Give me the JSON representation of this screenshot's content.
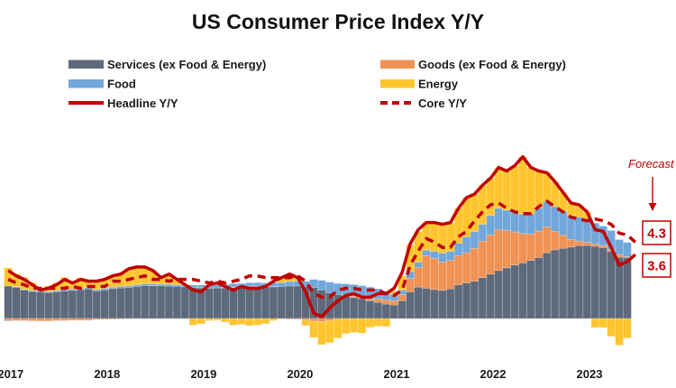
{
  "title": "US Consumer Price Index Y/Y",
  "legend": {
    "items": [
      {
        "key": "services",
        "label": "Services (ex Food & Energy)",
        "type": "bar",
        "color": "#5E6A7B"
      },
      {
        "key": "goods",
        "label": "Goods (ex Food & Energy)",
        "type": "bar",
        "color": "#EF9255"
      },
      {
        "key": "food",
        "label": "Food",
        "type": "bar",
        "color": "#72A7DA"
      },
      {
        "key": "energy",
        "label": "Energy",
        "type": "bar",
        "color": "#FFC52F"
      },
      {
        "key": "headline",
        "label": "Headline Y/Y",
        "type": "line-solid",
        "color": "#C00000"
      },
      {
        "key": "core",
        "label": "Core Y/Y",
        "type": "line-dashed",
        "color": "#C00000"
      }
    ]
  },
  "annotation": {
    "forecast_label": "Forecast",
    "forecast_core_value": "4.3",
    "forecast_headline_value": "3.6",
    "color": "#C00000"
  },
  "chart_data": {
    "type": "bar",
    "stacked": true,
    "overlay_type": "line",
    "title": "US Consumer Price Index Y/Y",
    "xlabel": "",
    "ylabel": "",
    "ylim": [
      -2,
      10
    ],
    "grid": false,
    "legend_position": "top",
    "x_tick_labels": [
      "2017",
      "2018",
      "2019",
      "2020",
      "2021",
      "2022",
      "2023"
    ],
    "bar_months": [
      "2017-02",
      "2017-03",
      "2017-04",
      "2017-05",
      "2017-06",
      "2017-07",
      "2017-08",
      "2017-09",
      "2017-10",
      "2017-11",
      "2017-12",
      "2018-01",
      "2018-02",
      "2018-03",
      "2018-04",
      "2018-05",
      "2018-06",
      "2018-07",
      "2018-08",
      "2018-09",
      "2018-10",
      "2018-11",
      "2018-12",
      "2019-01",
      "2019-02",
      "2019-03",
      "2019-04",
      "2019-05",
      "2019-06",
      "2019-07",
      "2019-08",
      "2019-09",
      "2019-10",
      "2019-11",
      "2019-12",
      "2020-01",
      "2020-02",
      "2020-03",
      "2020-04",
      "2020-05",
      "2020-06",
      "2020-07",
      "2020-08",
      "2020-09",
      "2020-10",
      "2020-11",
      "2020-12",
      "2021-01",
      "2021-02",
      "2021-03",
      "2021-04",
      "2021-05",
      "2021-06",
      "2021-07",
      "2021-08",
      "2021-09",
      "2021-10",
      "2021-11",
      "2021-12",
      "2022-01",
      "2022-02",
      "2022-03",
      "2022-04",
      "2022-05",
      "2022-06",
      "2022-07",
      "2022-08",
      "2022-09",
      "2022-10",
      "2022-11",
      "2022-12",
      "2023-01",
      "2023-02",
      "2023-03",
      "2023-04",
      "2023-05",
      "2023-06",
      "2023-07"
    ],
    "line_months": [
      "2017-02",
      "2017-03",
      "2017-04",
      "2017-05",
      "2017-06",
      "2017-07",
      "2017-08",
      "2017-09",
      "2017-10",
      "2017-11",
      "2017-12",
      "2018-01",
      "2018-02",
      "2018-03",
      "2018-04",
      "2018-05",
      "2018-06",
      "2018-07",
      "2018-08",
      "2018-09",
      "2018-10",
      "2018-11",
      "2018-12",
      "2019-01",
      "2019-02",
      "2019-03",
      "2019-04",
      "2019-05",
      "2019-06",
      "2019-07",
      "2019-08",
      "2019-09",
      "2019-10",
      "2019-11",
      "2019-12",
      "2020-01",
      "2020-02",
      "2020-03",
      "2020-04",
      "2020-05",
      "2020-06",
      "2020-07",
      "2020-08",
      "2020-09",
      "2020-10",
      "2020-11",
      "2020-12",
      "2021-01",
      "2021-02",
      "2021-03",
      "2021-04",
      "2021-05",
      "2021-06",
      "2021-07",
      "2021-08",
      "2021-09",
      "2021-10",
      "2021-11",
      "2021-12",
      "2022-01",
      "2022-02",
      "2022-03",
      "2022-04",
      "2022-05",
      "2022-06",
      "2022-07",
      "2022-08",
      "2022-09",
      "2022-10",
      "2022-11",
      "2022-12",
      "2023-01",
      "2023-02",
      "2023-03",
      "2023-04",
      "2023-05",
      "2023-06",
      "2023-07",
      "2023-08"
    ],
    "series": [
      {
        "key": "services",
        "name": "Services (ex Food & Energy)",
        "kind": "bar",
        "values": [
          1.83,
          1.75,
          1.6,
          1.52,
          1.5,
          1.46,
          1.5,
          1.55,
          1.58,
          1.62,
          1.66,
          1.55,
          1.6,
          1.68,
          1.72,
          1.75,
          1.8,
          1.85,
          1.85,
          1.84,
          1.82,
          1.8,
          1.78,
          1.74,
          1.72,
          1.7,
          1.72,
          1.72,
          1.74,
          1.76,
          1.8,
          1.8,
          1.78,
          1.78,
          1.8,
          1.83,
          1.83,
          1.8,
          1.75,
          1.6,
          1.45,
          1.35,
          1.25,
          1.18,
          1.12,
          1.0,
          0.91,
          0.81,
          0.76,
          1.0,
          1.5,
          1.77,
          1.7,
          1.63,
          1.58,
          1.67,
          1.9,
          2.0,
          2.1,
          2.3,
          2.5,
          2.7,
          2.85,
          3.01,
          3.13,
          3.27,
          3.43,
          3.7,
          3.86,
          3.95,
          4.02,
          4.1,
          4.11,
          4.06,
          3.99,
          3.77,
          3.45,
          3.43
        ]
      },
      {
        "key": "goods",
        "name": "Goods (ex Food & Energy)",
        "kind": "bar",
        "values": [
          -0.12,
          -0.12,
          -0.12,
          -0.13,
          -0.14,
          -0.14,
          -0.12,
          -0.12,
          -0.1,
          -0.1,
          -0.1,
          -0.06,
          -0.05,
          -0.04,
          -0.03,
          -0.02,
          -0.01,
          0.0,
          0.01,
          0.0,
          -0.01,
          -0.02,
          -0.02,
          0.0,
          0.02,
          0.0,
          -0.02,
          0.02,
          0.04,
          0.03,
          0.03,
          0.02,
          0.02,
          0.02,
          -0.02,
          -0.04,
          -0.04,
          -0.08,
          -0.15,
          -0.17,
          -0.12,
          -0.05,
          0.05,
          0.08,
          0.08,
          0.09,
          0.2,
          0.23,
          0.24,
          0.35,
          0.75,
          1.1,
          1.84,
          1.75,
          1.6,
          1.6,
          1.65,
          1.7,
          1.85,
          2.05,
          2.2,
          2.3,
          2.12,
          1.86,
          1.65,
          1.48,
          1.49,
          1.45,
          1.04,
          0.73,
          0.42,
          0.26,
          0.17,
          0.13,
          0.12,
          0.12,
          0.15,
          0.05
        ]
      },
      {
        "key": "food",
        "name": "Food",
        "kind": "bar",
        "values": [
          -0.03,
          0.04,
          0.04,
          0.05,
          0.06,
          0.06,
          0.07,
          0.08,
          0.07,
          0.07,
          0.08,
          0.08,
          0.09,
          0.09,
          0.09,
          0.09,
          0.1,
          0.1,
          0.1,
          0.1,
          0.1,
          0.1,
          0.1,
          0.15,
          0.15,
          0.16,
          0.16,
          0.17,
          0.18,
          0.18,
          0.18,
          0.2,
          0.2,
          0.22,
          0.22,
          0.25,
          0.28,
          0.3,
          0.45,
          0.55,
          0.6,
          0.62,
          0.65,
          0.65,
          0.65,
          0.68,
          0.56,
          0.48,
          0.35,
          0.25,
          0.4,
          0.3,
          0.31,
          0.4,
          0.5,
          0.51,
          0.7,
          0.9,
          0.95,
          0.95,
          1.1,
          1.2,
          1.13,
          1.09,
          1.1,
          1.13,
          1.29,
          1.45,
          1.4,
          1.38,
          1.35,
          1.35,
          1.29,
          1.18,
          1.09,
          1.06,
          0.84,
          0.8
        ]
      },
      {
        "key": "energy",
        "name": "Energy",
        "kind": "bar",
        "values": [
          1.02,
          0.73,
          0.68,
          0.46,
          0.18,
          0.32,
          0.45,
          0.69,
          0.45,
          0.61,
          0.46,
          0.53,
          0.56,
          0.67,
          0.72,
          0.98,
          1.01,
          0.95,
          0.74,
          0.36,
          0.59,
          0.32,
          0.04,
          -0.37,
          -0.3,
          -0.12,
          -0.08,
          -0.2,
          -0.37,
          -0.33,
          -0.4,
          -0.37,
          -0.3,
          -0.12,
          0.2,
          0.4,
          0.2,
          -0.32,
          -0.92,
          -1.3,
          -1.24,
          -1.05,
          -0.85,
          -0.78,
          -0.82,
          -0.5,
          -0.43,
          -0.45,
          0.2,
          0.8,
          1.5,
          1.73,
          1.55,
          1.62,
          1.62,
          1.62,
          1.95,
          2.2,
          2.1,
          2.2,
          2.1,
          2.3,
          2.2,
          2.64,
          3.22,
          2.62,
          2.09,
          1.6,
          1.4,
          1.04,
          0.71,
          0.69,
          0.43,
          -0.5,
          -0.5,
          -1.0,
          -1.5,
          -1.1
        ]
      },
      {
        "key": "headline",
        "name": "Headline Y/Y",
        "kind": "line",
        "style": "solid",
        "values": [
          2.7,
          2.4,
          2.2,
          1.9,
          1.6,
          1.7,
          1.9,
          2.2,
          2.0,
          2.2,
          2.1,
          2.1,
          2.2,
          2.4,
          2.5,
          2.8,
          2.9,
          2.9,
          2.7,
          2.3,
          2.5,
          2.2,
          1.9,
          1.6,
          1.5,
          1.9,
          2.0,
          1.8,
          1.6,
          1.8,
          1.7,
          1.7,
          1.8,
          2.1,
          2.3,
          2.5,
          2.3,
          1.5,
          0.3,
          0.1,
          0.6,
          1.0,
          1.3,
          1.4,
          1.2,
          1.2,
          1.4,
          1.4,
          1.7,
          2.6,
          4.2,
          5.0,
          5.4,
          5.4,
          5.3,
          5.4,
          6.2,
          6.8,
          7.0,
          7.5,
          7.9,
          8.5,
          8.3,
          8.6,
          9.1,
          8.5,
          8.3,
          8.2,
          7.7,
          7.1,
          6.5,
          6.4,
          6.0,
          5.0,
          4.9,
          4.0,
          3.0,
          3.2,
          3.6
        ]
      },
      {
        "key": "core",
        "name": "Core Y/Y",
        "kind": "line",
        "style": "dashed",
        "values": [
          2.2,
          2.0,
          1.9,
          1.7,
          1.7,
          1.7,
          1.7,
          1.7,
          1.8,
          1.7,
          1.8,
          1.8,
          1.8,
          2.1,
          2.1,
          2.2,
          2.3,
          2.4,
          2.2,
          2.2,
          2.1,
          2.2,
          2.2,
          2.2,
          2.1,
          2.0,
          2.1,
          2.0,
          2.1,
          2.2,
          2.4,
          2.4,
          2.3,
          2.3,
          2.3,
          2.3,
          2.4,
          2.1,
          1.4,
          1.2,
          1.2,
          1.6,
          1.7,
          1.7,
          1.6,
          1.6,
          1.6,
          1.4,
          1.3,
          1.6,
          3.0,
          3.8,
          4.5,
          4.3,
          4.0,
          4.0,
          4.6,
          4.9,
          5.5,
          6.0,
          6.4,
          6.5,
          6.2,
          6.0,
          5.9,
          5.9,
          6.3,
          6.6,
          6.3,
          6.0,
          5.7,
          5.6,
          5.5,
          5.6,
          5.5,
          5.3,
          4.8,
          4.7,
          4.3
        ]
      }
    ],
    "forecast": {
      "month": "2023-08",
      "headline": 3.6,
      "core": 4.3
    }
  }
}
